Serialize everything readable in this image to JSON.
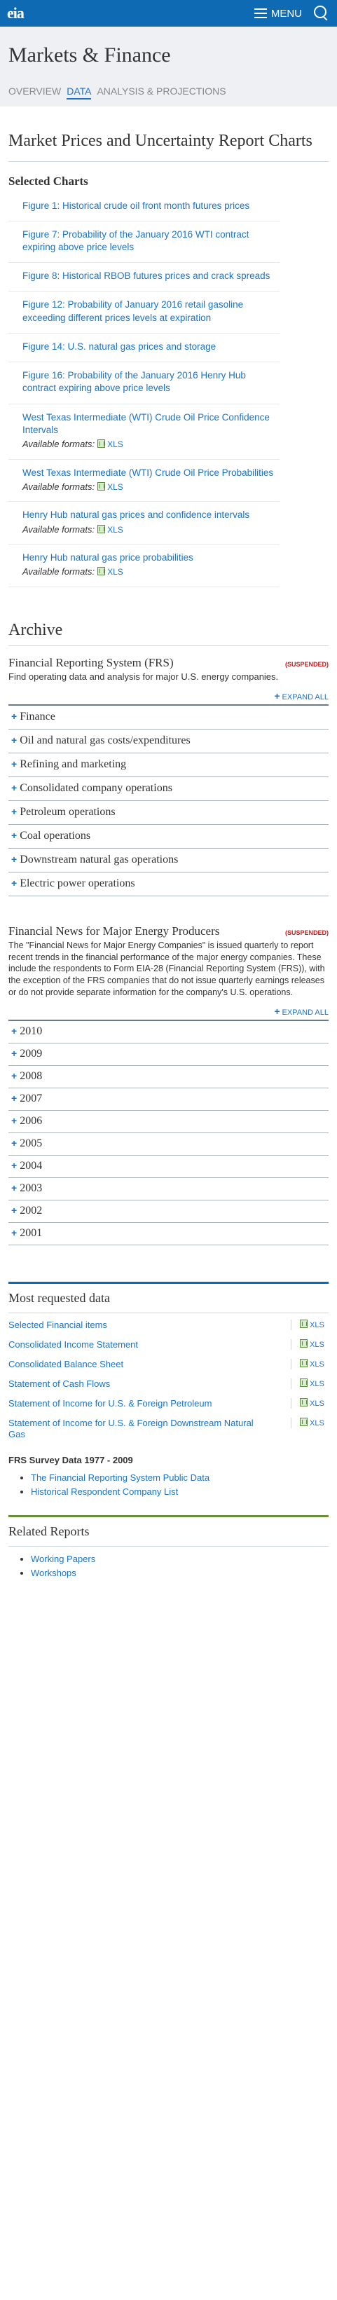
{
  "header": {
    "logo": "eia",
    "menu_label": "MENU"
  },
  "hero": {
    "title": "Markets & Finance",
    "tabs": [
      {
        "label": "OVERVIEW",
        "active": false
      },
      {
        "label": "DATA",
        "active": true
      },
      {
        "label": "ANALYSIS & PROJECTIONS",
        "active": false
      }
    ]
  },
  "report": {
    "title": "Market Prices and Uncertainty Report Charts",
    "selected_heading": "Selected Charts",
    "available_formats_label": "Available formats:",
    "charts": [
      {
        "label": "Figure 1: Historical crude oil front month futures prices",
        "formats": []
      },
      {
        "label": "Figure 7: Probability of the January 2016 WTI contract expiring above price levels",
        "formats": []
      },
      {
        "label": "Figure 8: Historical RBOB futures prices and crack spreads",
        "formats": []
      },
      {
        "label": "Figure 12: Probability of January 2016 retail gasoline exceeding different prices levels at expiration",
        "formats": []
      },
      {
        "label": "Figure 14: U.S. natural gas prices and storage",
        "formats": []
      },
      {
        "label": "Figure 16: Probability of the January 2016 Henry Hub contract expiring above price levels",
        "formats": []
      },
      {
        "label": "West Texas Intermediate (WTI) Crude Oil Price Confidence Intervals",
        "formats": [
          "XLS"
        ]
      },
      {
        "label": "West Texas Intermediate (WTI) Crude Oil Price Probabilities",
        "formats": [
          "XLS"
        ]
      },
      {
        "label": "Henry Hub natural gas prices and confidence intervals",
        "formats": [
          "XLS"
        ]
      },
      {
        "label": "Henry Hub natural gas price probabilities",
        "formats": [
          "XLS"
        ]
      }
    ]
  },
  "archive": {
    "title": "Archive",
    "frs": {
      "title": "Financial Reporting System (FRS)",
      "status": "(SUSPENDED)",
      "description": "Find operating data and analysis for major U.S. energy companies.",
      "expand_label": "EXPAND ALL",
      "items": [
        "Finance",
        "Oil and natural gas costs/expenditures",
        "Refining and marketing",
        "Consolidated company operations",
        "Petroleum operations",
        "Coal operations",
        "Downstream natural gas operations",
        "Electric power operations"
      ]
    },
    "news": {
      "title": "Financial News for Major Energy Producers",
      "status": "(SUSPENDED)",
      "description": "The \"Financial News for Major Energy Companies\" is issued quarterly to report recent trends in the financial performance of the major energy companies. These include the respondents to Form EIA-28 (Financial Reporting System (FRS)), with the exception of the FRS companies that do not issue quarterly earnings releases or do not provide separate information for the company's U.S. operations.",
      "expand_label": "EXPAND ALL",
      "years": [
        "2010",
        "2009",
        "2008",
        "2007",
        "2006",
        "2005",
        "2004",
        "2003",
        "2002",
        "2001"
      ]
    }
  },
  "most_requested": {
    "title": "Most requested data",
    "items": [
      {
        "label": "Selected Financial items",
        "format": "XLS"
      },
      {
        "label": "Consolidated Income Statement",
        "format": "XLS"
      },
      {
        "label": "Consolidated Balance Sheet",
        "format": "XLS"
      },
      {
        "label": "Statement of Cash Flows",
        "format": "XLS"
      },
      {
        "label": "Statement of Income for U.S. & Foreign Petroleum",
        "format": "XLS"
      },
      {
        "label": "Statement of Income for U.S. & Foreign Downstream Natural Gas",
        "format": "XLS"
      }
    ],
    "survey_title": "FRS Survey Data 1977 - 2009",
    "survey_links": [
      "The Financial Reporting System Public Data",
      "Historical Respondent Company List"
    ]
  },
  "related": {
    "title": "Related Reports",
    "links": [
      "Working Papers",
      "Workshops"
    ]
  },
  "colors": {
    "brand": "#0f6ab4",
    "link": "#1a73c9",
    "suspended": "#c91d1d",
    "related_accent": "#6a8d3a"
  }
}
